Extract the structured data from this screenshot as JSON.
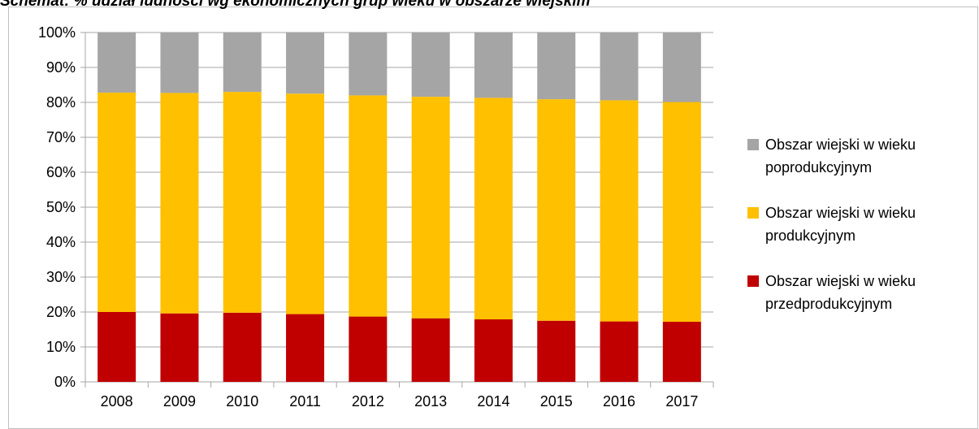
{
  "chart_data": {
    "type": "stacked_bar",
    "title": "Schemat: % udział ludności wg ekonomicznych grup wieku w obszarze wiejskim",
    "categories": [
      "2008",
      "2009",
      "2010",
      "2011",
      "2012",
      "2013",
      "2014",
      "2015",
      "2016",
      "2017"
    ],
    "series": [
      {
        "name": "Obszar wiejski w wieku przedprodukcyjnym",
        "color": "#c00000",
        "values": [
          20.0,
          19.6,
          19.8,
          19.4,
          18.7,
          18.2,
          17.9,
          17.5,
          17.3,
          17.2
        ]
      },
      {
        "name": "Obszar wiejski w wieku produkcyjnym",
        "color": "#ffc000",
        "values": [
          62.8,
          63.1,
          63.2,
          63.1,
          63.3,
          63.4,
          63.4,
          63.4,
          63.3,
          62.9
        ]
      },
      {
        "name": "Obszar wiejski w wieku poprodukcyjnym",
        "color": "#a5a5a5",
        "values": [
          17.2,
          17.3,
          17.0,
          17.5,
          18.0,
          18.4,
          18.7,
          19.1,
          19.4,
          19.9
        ]
      }
    ],
    "ylim": [
      0,
      100
    ],
    "yticks": [
      {
        "value": 0,
        "label": "0%"
      },
      {
        "value": 10,
        "label": "10%"
      },
      {
        "value": 20,
        "label": "20%"
      },
      {
        "value": 30,
        "label": "30%"
      },
      {
        "value": 40,
        "label": "40%"
      },
      {
        "value": 50,
        "label": "50%"
      },
      {
        "value": 60,
        "label": "60%"
      },
      {
        "value": 70,
        "label": "70%"
      },
      {
        "value": 80,
        "label": "80%"
      },
      {
        "value": 90,
        "label": "90%"
      },
      {
        "value": 100,
        "label": "100%"
      }
    ],
    "grid": true,
    "legend": "right"
  }
}
